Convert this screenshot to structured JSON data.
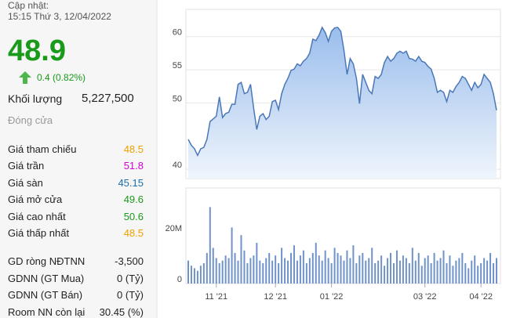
{
  "panel": {
    "update_label": "Cập nhật:",
    "update_time": "15:15 Thứ 3, 12/04/2022",
    "price": "48.9",
    "price_color": "#1a9a1a",
    "change": "0.4 (0.82%)",
    "volume_label": "Khối lượng",
    "volume": "5,227,500",
    "status": "Đóng cửa",
    "rows": [
      {
        "label": "Giá tham chiếu",
        "value": "48.5",
        "color": "#f0a000"
      },
      {
        "label": "Giá trần",
        "value": "51.8",
        "color": "#d400d4"
      },
      {
        "label": "Giá sàn",
        "value": "45.15",
        "color": "#1c6fa8"
      },
      {
        "label": "Giá mở cửa",
        "value": "49.6",
        "color": "#1a9a1a"
      },
      {
        "label": "Giá cao nhất",
        "value": "50.6",
        "color": "#1a9a1a"
      },
      {
        "label": "Giá thấp nhất",
        "value": "48.5",
        "color": "#f0a000"
      }
    ],
    "foreign": [
      {
        "label": "GD ròng NĐTNN",
        "value": "-3,500"
      },
      {
        "label": "GDNN (GT Mua)",
        "value": "0 (Tỷ)"
      },
      {
        "label": "GDNN (GT Bán)",
        "value": "0 (Tỷ)"
      },
      {
        "label": "Room NN còn lại",
        "value": "30.45 (%)"
      }
    ]
  },
  "chart_data": [
    {
      "type": "area",
      "color": "#4a78b8",
      "fill": "#9fc1ec",
      "values": [
        44.5,
        43.6,
        43.1,
        42.1,
        43.1,
        43.3,
        44.5,
        47.2,
        47.6,
        48.0,
        50.9,
        47.8,
        48.4,
        48.6,
        49.8,
        49.8,
        52.8,
        53.1,
        51.4,
        51.6,
        52.8,
        49.2,
        46.0,
        48.0,
        48.4,
        47.5,
        48.0,
        50.2,
        50.4,
        49.0,
        51.4,
        52.8,
        53.7,
        54.9,
        55.1,
        55.9,
        55.6,
        56.3,
        56.7,
        57.5,
        59.6,
        59.4,
        60.2,
        61.4,
        60.6,
        59.3,
        60.8,
        61.3,
        61.4,
        60.8,
        57.9,
        54.3,
        56.7,
        55.9,
        53.7,
        49.9,
        54.3,
        53.1,
        51.9,
        51.4,
        54.0,
        53.7,
        54.3,
        56.1,
        57.0,
        56.3,
        56.7,
        57.5,
        57.8,
        57.5,
        57.8,
        56.7,
        56.6,
        56.3,
        57.0,
        56.3,
        56.1,
        55.5,
        55.1,
        53.7,
        51.6,
        51.9,
        51.6,
        50.2,
        51.9,
        51.6,
        52.5,
        53.1,
        54.0,
        53.7,
        52.8,
        51.9,
        53.1,
        52.3,
        52.8,
        54.3,
        53.7,
        53.1,
        51.4,
        48.9
      ],
      "xlim": [
        0,
        99
      ],
      "ylim": [
        38.6,
        64.1
      ],
      "yticks": [
        40,
        50,
        55,
        60
      ],
      "grid": true
    },
    {
      "type": "bar",
      "color": "#6f93c9",
      "values": [
        9,
        7,
        6,
        5,
        7,
        8,
        12,
        30,
        14,
        10,
        8,
        9,
        11,
        10,
        22,
        12,
        9,
        19,
        13,
        8,
        10,
        11,
        16,
        9,
        8,
        10,
        12,
        9,
        11,
        8,
        14,
        10,
        9,
        12,
        15,
        9,
        11,
        13,
        8,
        10,
        12,
        16,
        11,
        9,
        13,
        10,
        8,
        14,
        12,
        11,
        9,
        13,
        10,
        15,
        8,
        11,
        12,
        9,
        10,
        14,
        8,
        9,
        11,
        7,
        10,
        12,
        8,
        13,
        9,
        11,
        10,
        8,
        14,
        9,
        12,
        7,
        10,
        11,
        8,
        12,
        9,
        10,
        13,
        8,
        11,
        7,
        9,
        10,
        12,
        8,
        6,
        9,
        11,
        7,
        8,
        10,
        9,
        12,
        8,
        10
      ],
      "xlim": [
        0,
        99
      ],
      "ylim": [
        0,
        37.5
      ],
      "yticks": [
        0,
        {
          "value": 20,
          "label": "20M"
        }
      ],
      "xticks": [
        {
          "value": 9,
          "label": "11 '21"
        },
        {
          "value": 28,
          "label": "12 '21"
        },
        {
          "value": 46,
          "label": "01 '22"
        },
        {
          "value": 76,
          "label": "03 '22"
        },
        {
          "value": 94,
          "label": "04 '22"
        }
      ]
    }
  ]
}
